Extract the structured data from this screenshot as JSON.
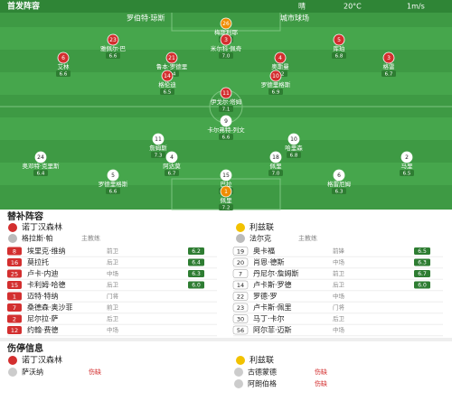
{
  "header": {
    "title": "首发阵容",
    "weather": "晴",
    "temp": "20°C",
    "wind": "1m/s"
  },
  "match_info": {
    "referee": "罗伯特·琼斯",
    "venue": "城市球场"
  },
  "pitch": {
    "home": [
      {
        "number": "26",
        "name": "梅斯利耶",
        "rating": "6.9"
      },
      {
        "number": "23",
        "name": "雅佩尔·巴",
        "rating": "6.6"
      },
      {
        "number": "3",
        "name": "米尔科·佩奇",
        "rating": "7.0"
      },
      {
        "number": "5",
        "name": "库珀",
        "rating": "6.8"
      },
      {
        "number": "6",
        "name": "艾林",
        "rating": "6.6"
      },
      {
        "number": "21",
        "name": "鲁本·罗德里",
        "rating": "6.4"
      },
      {
        "number": "4",
        "name": "奥斯曼",
        "rating": "6.2"
      },
      {
        "number": "3",
        "name": "格雷",
        "rating": "6.7"
      },
      {
        "number": "14",
        "name": "格伦迪",
        "rating": "6.5"
      },
      {
        "number": "10",
        "name": "罗德里格斯",
        "rating": "6.9"
      },
      {
        "number": "11",
        "name": "伊戈尔·塔姆",
        "rating": "7.1"
      }
    ],
    "away": [
      {
        "number": "9",
        "name": "卡尔弗特-列文",
        "rating": "6.6"
      },
      {
        "number": "11",
        "name": "詹姆斯",
        "rating": "7.3"
      },
      {
        "number": "10",
        "name": "哈里森",
        "rating": "6.8"
      },
      {
        "number": "24",
        "name": "奥邓特·克里斯",
        "rating": "6.4"
      },
      {
        "number": "4",
        "name": "阿达莫",
        "rating": "6.7"
      },
      {
        "number": "18",
        "name": "佩里",
        "rating": "7.0"
      },
      {
        "number": "2",
        "name": "马里",
        "rating": "6.5"
      },
      {
        "number": "5",
        "name": "罗德里格斯",
        "rating": "6.6"
      },
      {
        "number": "15",
        "name": "巴拉",
        "rating": "6.9"
      },
      {
        "number": "6",
        "name": "格雷厄姆",
        "rating": "6.3"
      },
      {
        "number": "1",
        "name": "佩里",
        "rating": "7.2"
      }
    ]
  },
  "subs": {
    "title": "替补阵容",
    "home": {
      "team": "诺丁汉森林",
      "coach": "格拉斯·帕",
      "coach_role": "主教练",
      "players": [
        {
          "number": "8",
          "name": "埃里克·维纳",
          "position": "前卫",
          "rating": "6.2"
        },
        {
          "number": "16",
          "name": "莫拉托",
          "position": "后卫",
          "rating": "6.4"
        },
        {
          "number": "25",
          "name": "卢卡·内迪",
          "position": "中场",
          "rating": "6.3"
        },
        {
          "number": "15",
          "name": "卡利姆·哈德",
          "position": "后卫",
          "rating": "6.0"
        },
        {
          "number": "1",
          "name": "迈特·特纳",
          "position": "门将"
        },
        {
          "number": "7",
          "name": "桑德森·奥沙菲",
          "position": "前卫"
        },
        {
          "number": "2",
          "name": "尼尔拉·萨",
          "position": "后卫"
        },
        {
          "number": "12",
          "name": "约翰·费德",
          "position": "中场"
        }
      ]
    },
    "away": {
      "team": "利兹联",
      "coach": "法尔克",
      "coach_role": "主教练",
      "players": [
        {
          "number": "19",
          "name": "奥卡福",
          "position": "前锋",
          "rating": "6.5"
        },
        {
          "number": "20",
          "name": "肖恩·德斯",
          "position": "中场",
          "rating": "6.3"
        },
        {
          "number": "7",
          "name": "丹尼尔·詹姆斯",
          "position": "前卫",
          "rating": "6.7"
        },
        {
          "number": "14",
          "name": "卢卡斯·罗德",
          "position": "后卫",
          "rating": "6.0"
        },
        {
          "number": "22",
          "name": "罗德·罗",
          "position": "中场"
        },
        {
          "number": "23",
          "name": "卢卡斯·佩里",
          "position": "门将"
        },
        {
          "number": "30",
          "name": "马丁·卡尔",
          "position": "后卫"
        },
        {
          "number": "56",
          "name": "阿尔菲·迈斯",
          "position": "中场"
        }
      ]
    }
  },
  "injuries": {
    "title": "伤停信息",
    "home": {
      "team": "诺丁汉森林",
      "players": [
        {
          "name": "萨沃纳",
          "status": "伤缺"
        }
      ]
    },
    "away": {
      "team": "利兹联",
      "players": [
        {
          "name": "古德蒙德",
          "status": "伤缺"
        },
        {
          "name": "阿朗伯格",
          "status": "伤缺"
        }
      ]
    }
  }
}
